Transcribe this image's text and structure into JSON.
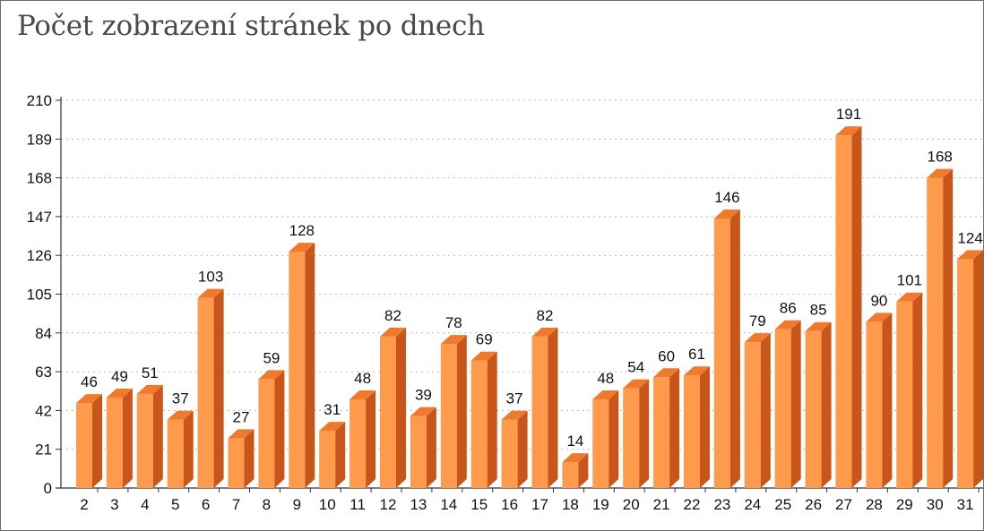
{
  "chart_data": {
    "type": "bar",
    "title": "Počet zobrazení stránek po dnech",
    "xlabel": "",
    "ylabel": "",
    "categories": [
      "2",
      "3",
      "4",
      "5",
      "6",
      "7",
      "8",
      "9",
      "10",
      "11",
      "12",
      "13",
      "14",
      "15",
      "16",
      "17",
      "18",
      "19",
      "20",
      "21",
      "22",
      "23",
      "24",
      "25",
      "26",
      "27",
      "28",
      "29",
      "30",
      "31"
    ],
    "values": [
      46,
      49,
      51,
      37,
      103,
      27,
      59,
      128,
      31,
      48,
      82,
      39,
      78,
      69,
      37,
      82,
      14,
      48,
      54,
      60,
      61,
      146,
      79,
      86,
      85,
      191,
      90,
      101,
      168,
      124
    ],
    "ylim": [
      0,
      210
    ],
    "yticks": [
      "0",
      "21",
      "42",
      "63",
      "84",
      "105",
      "126",
      "147",
      "168",
      "189",
      "210"
    ],
    "grid": true,
    "bar_style": "3d",
    "colors": {
      "front": "#ff9a4d",
      "side": "#c8561a",
      "top": "#f07a2c",
      "grid": "#b9b9b9",
      "axis": "#333333"
    }
  }
}
